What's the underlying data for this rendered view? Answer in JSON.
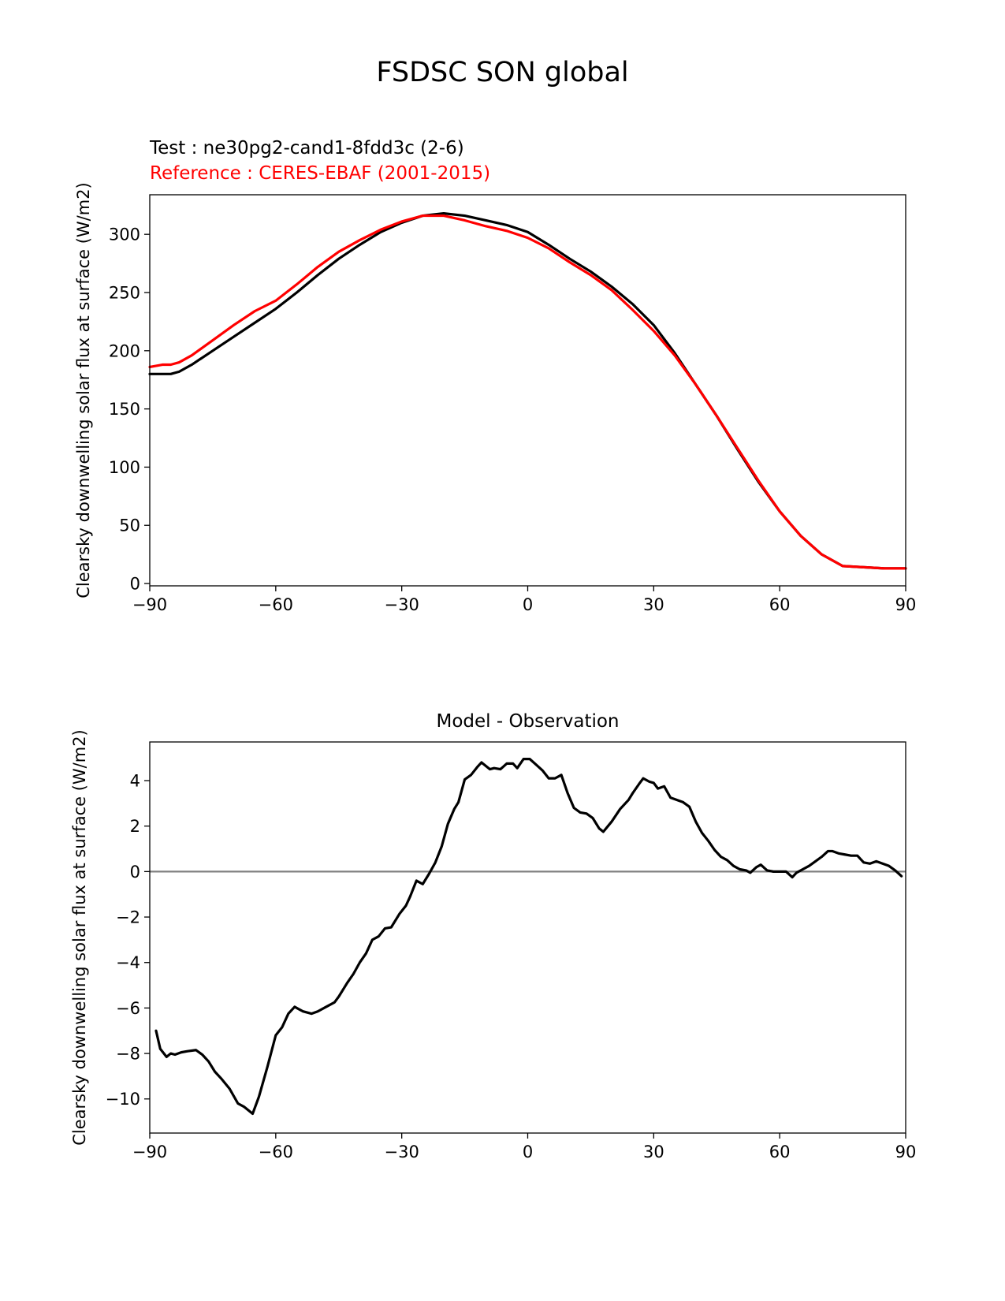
{
  "figure": {
    "title": "FSDSC SON global",
    "test_label": "Test : ne30pg2-cand1-8fdd3c (2-6)",
    "reference_label": "Reference : CERES-EBAF (2001-2015)",
    "test_color": "#000000",
    "reference_color": "#ff0000",
    "zero_line_color": "#808080"
  },
  "chart_data": [
    {
      "type": "line",
      "xlabel": "",
      "ylabel": "Clearsky downwelling solar flux at surface (W/m2)",
      "xlim": [
        -90,
        90
      ],
      "ylim": [
        -2,
        334
      ],
      "xticks": [
        -90,
        -60,
        -30,
        0,
        30,
        60,
        90
      ],
      "yticks": [
        0,
        50,
        100,
        150,
        200,
        250,
        300
      ],
      "xtick_labels": [
        "−90",
        "−60",
        "−30",
        "0",
        "30",
        "60",
        "90"
      ],
      "ytick_labels": [
        "0",
        "50",
        "100",
        "150",
        "200",
        "250",
        "300"
      ],
      "series": [
        {
          "role": "test",
          "color": "#000000",
          "x": [
            -90,
            -85,
            -83,
            -80,
            -75,
            -70,
            -65,
            -60,
            -55,
            -50,
            -45,
            -40,
            -35,
            -30,
            -25,
            -20,
            -15,
            -10,
            -5,
            0,
            5,
            10,
            15,
            20,
            25,
            30,
            35,
            40,
            45,
            50,
            55,
            60,
            65,
            70,
            75,
            80,
            85,
            88,
            90
          ],
          "y": [
            180,
            180,
            182,
            188,
            200,
            212,
            224,
            236,
            250,
            265,
            279,
            291,
            302,
            310,
            316,
            318,
            316,
            312,
            308,
            302,
            291,
            279,
            268,
            255,
            240,
            222,
            198,
            171,
            144,
            115,
            87,
            62,
            41,
            25,
            15,
            14,
            13,
            13,
            13
          ]
        },
        {
          "role": "reference",
          "color": "#ff0000",
          "x": [
            -90,
            -87,
            -85,
            -83,
            -80,
            -75,
            -70,
            -65,
            -60,
            -55,
            -50,
            -45,
            -40,
            -35,
            -30,
            -25,
            -20,
            -15,
            -10,
            -5,
            0,
            5,
            10,
            15,
            20,
            25,
            30,
            35,
            40,
            45,
            50,
            55,
            60,
            65,
            70,
            75,
            80,
            85,
            88,
            90
          ],
          "y": [
            186,
            188,
            188,
            190,
            196,
            209,
            222,
            234,
            243,
            257,
            272,
            285,
            295,
            304,
            311,
            316,
            316,
            312,
            307,
            303,
            297,
            288,
            276,
            265,
            252,
            235,
            217,
            196,
            171,
            144,
            116,
            88,
            62,
            41,
            25,
            15,
            14,
            13,
            13,
            13
          ]
        }
      ]
    },
    {
      "type": "line",
      "title": "Model - Observation",
      "xlabel": "",
      "ylabel": "Clearsky downwelling solar flux at surface (W/m2)",
      "xlim": [
        -90,
        90
      ],
      "ylim": [
        -11.5,
        5.7
      ],
      "xticks": [
        -90,
        -60,
        -30,
        0,
        30,
        60,
        90
      ],
      "yticks": [
        -10,
        -8,
        -6,
        -4,
        -2,
        0,
        2,
        4
      ],
      "xtick_labels": [
        "−90",
        "−60",
        "−30",
        "0",
        "30",
        "60",
        "90"
      ],
      "ytick_labels": [
        "−10",
        "−8",
        "−6",
        "−4",
        "−2",
        "0",
        "2",
        "4"
      ],
      "zero_line": true,
      "series": [
        {
          "role": "difference",
          "color": "#000000",
          "x": [
            -88.5,
            -87.5,
            -86,
            -85,
            -84,
            -82.5,
            -81,
            -79,
            -77.5,
            -76,
            -74.5,
            -73,
            -71,
            -69,
            -67.5,
            -65.5,
            -64,
            -62,
            -60,
            -58.5,
            -57,
            -55.5,
            -53.5,
            -51.5,
            -50,
            -48,
            -46,
            -45,
            -43,
            -41.5,
            -40,
            -38.5,
            -37,
            -35.5,
            -34,
            -32.5,
            -30.5,
            -29,
            -28,
            -26.5,
            -25,
            -23.5,
            -22,
            -20.5,
            -19,
            -17.5,
            -16.5,
            -15,
            -13.5,
            -12,
            -11,
            -9,
            -8,
            -6.5,
            -5,
            -3.5,
            -2.5,
            -1,
            0.5,
            2,
            3.5,
            5,
            6.5,
            8,
            9.5,
            11,
            12.5,
            14,
            15.5,
            17,
            18,
            20,
            22,
            24,
            25,
            26.5,
            27.5,
            29,
            30,
            31,
            32.5,
            34,
            35.5,
            37,
            38.5,
            40,
            41.5,
            43,
            44.5,
            46,
            47.5,
            49,
            50.5,
            52,
            53,
            54.5,
            55.5,
            57,
            58.5,
            60,
            61.5,
            63,
            64,
            65.5,
            67,
            68.5,
            70,
            71.5,
            72.5,
            74,
            75.5,
            77,
            78.5,
            80,
            81.5,
            83,
            84.5,
            86,
            87.5,
            89
          ],
          "y": [
            -7.0,
            -7.8,
            -8.15,
            -8.0,
            -8.05,
            -7.95,
            -7.9,
            -7.85,
            -8.05,
            -8.35,
            -8.8,
            -9.1,
            -9.55,
            -10.2,
            -10.35,
            -10.65,
            -9.9,
            -8.6,
            -7.2,
            -6.85,
            -6.25,
            -5.95,
            -6.15,
            -6.25,
            -6.15,
            -5.95,
            -5.75,
            -5.5,
            -4.9,
            -4.5,
            -4.0,
            -3.6,
            -3.0,
            -2.85,
            -2.5,
            -2.45,
            -1.85,
            -1.5,
            -1.1,
            -0.4,
            -0.55,
            -0.1,
            0.4,
            1.1,
            2.1,
            2.75,
            3.05,
            4.05,
            4.25,
            4.6,
            4.8,
            4.5,
            4.55,
            4.5,
            4.75,
            4.75,
            4.55,
            4.95,
            4.95,
            4.7,
            4.45,
            4.1,
            4.1,
            4.25,
            3.45,
            2.8,
            2.6,
            2.55,
            2.35,
            1.9,
            1.75,
            2.2,
            2.75,
            3.15,
            3.45,
            3.85,
            4.1,
            3.95,
            3.9,
            3.65,
            3.75,
            3.25,
            3.15,
            3.05,
            2.85,
            2.2,
            1.7,
            1.35,
            0.95,
            0.65,
            0.5,
            0.25,
            0.1,
            0.05,
            -0.05,
            0.2,
            0.3,
            0.05,
            0.0,
            0.0,
            0.0,
            -0.25,
            -0.05,
            0.1,
            0.25,
            0.45,
            0.65,
            0.9,
            0.9,
            0.8,
            0.75,
            0.7,
            0.7,
            0.4,
            0.35,
            0.45,
            0.35,
            0.25,
            0.05,
            -0.2
          ]
        }
      ]
    }
  ]
}
